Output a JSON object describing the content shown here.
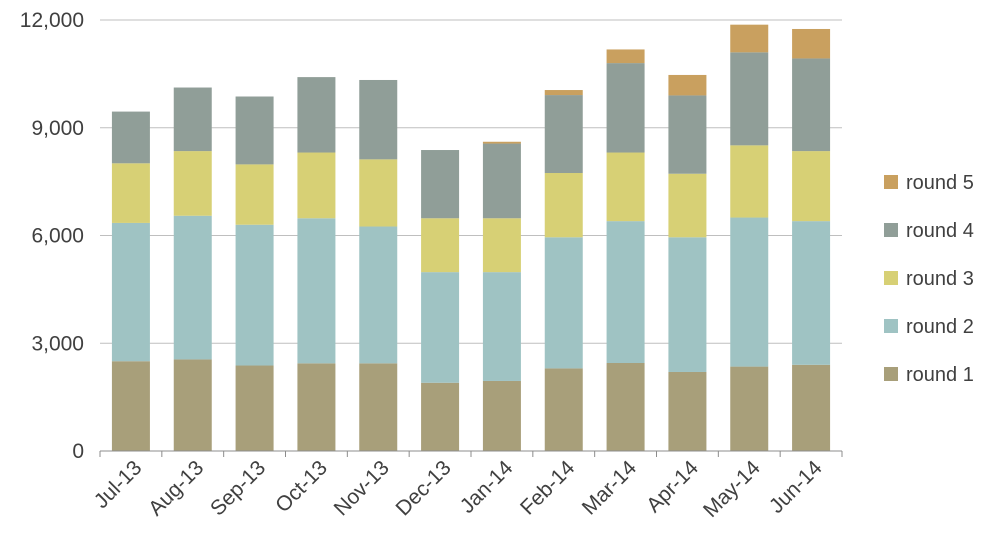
{
  "chart_data": {
    "type": "bar",
    "stacked": true,
    "title": "",
    "xlabel": "",
    "ylabel": "",
    "ylim": [
      0,
      12000
    ],
    "yticks": [
      0,
      3000,
      6000,
      9000,
      12000
    ],
    "ytick_labels": [
      "0",
      "3,000",
      "6,000",
      "9,000",
      "12,000"
    ],
    "grid": true,
    "legend_position": "right",
    "categories": [
      "Jul-13",
      "Aug-13",
      "Sep-13",
      "Oct-13",
      "Nov-13",
      "Dec-13",
      "Jan-14",
      "Feb-14",
      "Mar-14",
      "Apr-14",
      "May-14",
      "Jun-14"
    ],
    "series": [
      {
        "name": "round 1",
        "color": "#a89f7a",
        "values": [
          2500,
          2550,
          2380,
          2440,
          2440,
          1900,
          1950,
          2300,
          2450,
          2200,
          2350,
          2400
        ]
      },
      {
        "name": "round 2",
        "color": "#9fc3c3",
        "values": [
          3850,
          4000,
          3920,
          4040,
          3810,
          3080,
          3030,
          3650,
          3950,
          3750,
          4150,
          4000
        ]
      },
      {
        "name": "round 3",
        "color": "#d7d075",
        "values": [
          1660,
          1800,
          1680,
          1830,
          1870,
          1500,
          1500,
          1790,
          1910,
          1770,
          2010,
          1950
        ]
      },
      {
        "name": "round 4",
        "color": "#909e98",
        "values": [
          1440,
          1770,
          1890,
          2100,
          2210,
          1900,
          2080,
          2170,
          2490,
          2180,
          2590,
          2580
        ]
      },
      {
        "name": "round 5",
        "color": "#c9a05f",
        "values": [
          0,
          0,
          0,
          0,
          0,
          0,
          50,
          140,
          380,
          570,
          770,
          820
        ]
      }
    ]
  }
}
